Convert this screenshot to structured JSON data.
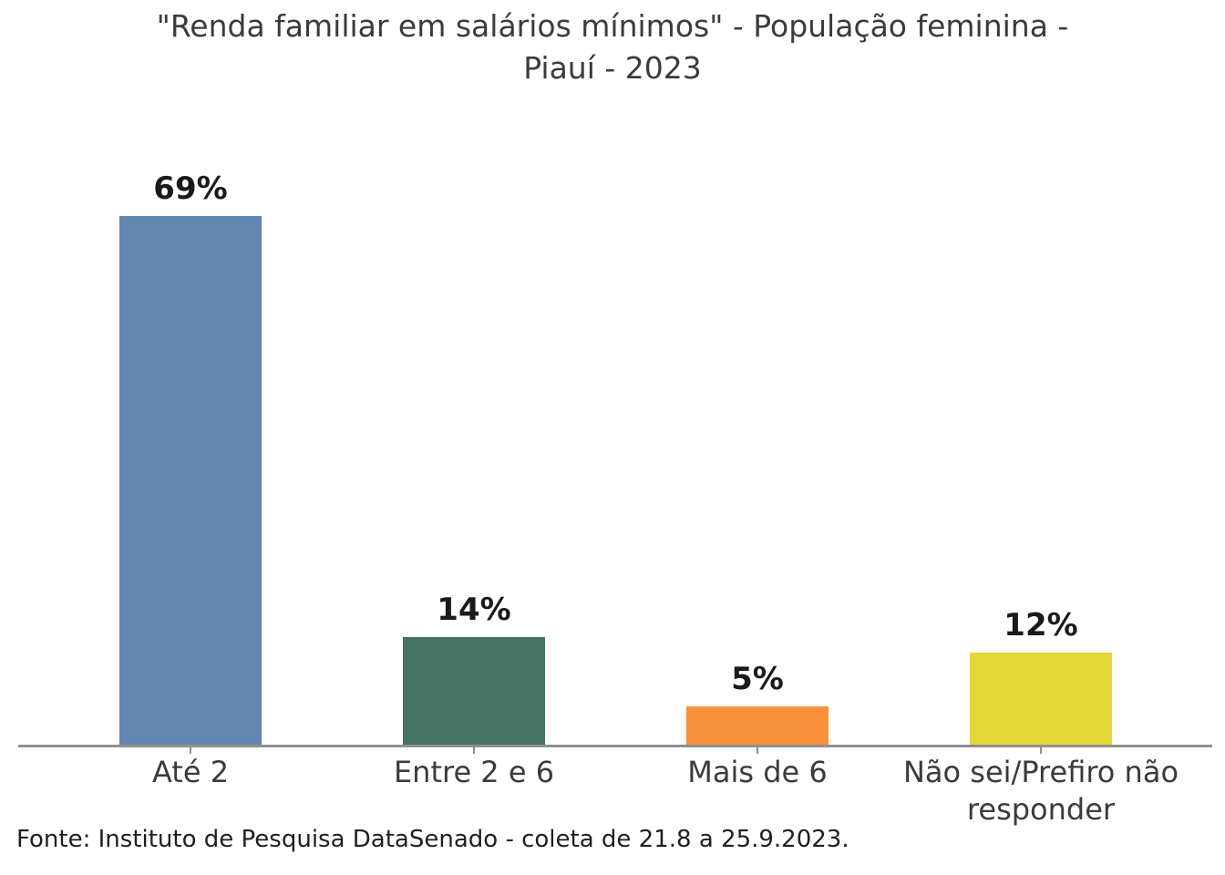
{
  "title": {
    "line1": "\"Renda familiar em salários mínimos\" - População feminina -",
    "line2": "Piauí - 2023"
  },
  "source": "Fonte: Instituto de Pesquisa DataSenado - coleta de 21.8 a 25.9.2023.",
  "chart_data": {
    "type": "bar",
    "title": "\"Renda familiar em salários mínimos\" - População feminina - Piauí - 2023",
    "categories": [
      "Até 2",
      "Entre 2 e 6",
      "Mais de 6",
      "Não sei/Prefiro não responder"
    ],
    "values": [
      69,
      14,
      5,
      12
    ],
    "value_labels": [
      "69%",
      "14%",
      "5%",
      "12%"
    ],
    "bar_colors": [
      "#6387ae",
      "#477365",
      "#f9923c",
      "#e5d737"
    ],
    "xlabel": "",
    "ylabel": "",
    "ylim": [
      0,
      75
    ],
    "grid": false,
    "legend": "none",
    "axis_color": "#909090",
    "title_color": "#3b3b3b",
    "value_label_color": "#1a1a1a",
    "source": "Fonte: Instituto de Pesquisa DataSenado - coleta de 21.8 a 25.9.2023."
  }
}
